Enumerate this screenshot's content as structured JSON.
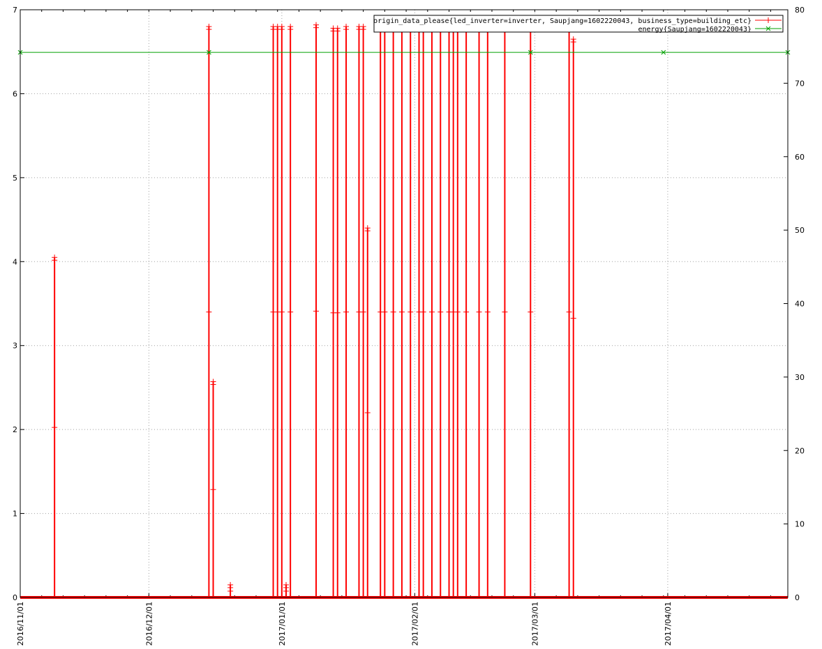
{
  "chart_data": {
    "type": "line",
    "title": "",
    "xlabel": "",
    "ylabel": "",
    "y2label": "",
    "grid": true,
    "legend_position": "top-right",
    "xlim": [
      "2016/11/01",
      "2017/04/29"
    ],
    "ylim": [
      0,
      7
    ],
    "y2lim": [
      0,
      80
    ],
    "x_ticks": [
      "2016/11/01",
      "2016/12/01",
      "2017/01/01",
      "2017/02/01",
      "2017/03/01",
      "2017/04/01"
    ],
    "y_ticks": [
      "0",
      "1",
      "2",
      "3",
      "4",
      "5",
      "6",
      "7"
    ],
    "y2_ticks": [
      "0",
      "10",
      "20",
      "30",
      "40",
      "50",
      "60",
      "70",
      "80"
    ],
    "series": [
      {
        "name": "origin_data_please{led_inverter=inverter, Saupjang=1602220043, business_type=building_etc}",
        "axis": "left",
        "color": "#ff0000",
        "marker": "plus",
        "baseline": 0,
        "spikes": [
          {
            "x": "2016/11/09",
            "y": 4.05
          },
          {
            "x": "2016/12/15",
            "y": 6.8
          },
          {
            "x": "2016/12/16",
            "y": 2.57
          },
          {
            "x": "2016/12/20",
            "y": 0.15
          },
          {
            "x": "2016/12/30",
            "y": 6.8
          },
          {
            "x": "2016/12/31",
            "y": 6.8
          },
          {
            "x": "2017/01/01",
            "y": 6.8
          },
          {
            "x": "2017/01/02",
            "y": 0.15
          },
          {
            "x": "2017/01/03",
            "y": 6.8
          },
          {
            "x": "2017/01/09",
            "y": 6.82
          },
          {
            "x": "2017/01/13",
            "y": 6.78
          },
          {
            "x": "2017/01/14",
            "y": 6.78
          },
          {
            "x": "2017/01/16",
            "y": 6.8
          },
          {
            "x": "2017/01/19",
            "y": 6.8
          },
          {
            "x": "2017/01/20",
            "y": 6.8
          },
          {
            "x": "2017/01/21",
            "y": 4.4
          },
          {
            "x": "2017/01/24",
            "y": 6.8
          },
          {
            "x": "2017/01/25",
            "y": 6.8
          },
          {
            "x": "2017/01/27",
            "y": 6.8
          },
          {
            "x": "2017/01/29",
            "y": 6.8
          },
          {
            "x": "2017/01/31",
            "y": 6.8
          },
          {
            "x": "2017/02/02",
            "y": 6.8
          },
          {
            "x": "2017/02/03",
            "y": 6.8
          },
          {
            "x": "2017/02/05",
            "y": 6.8
          },
          {
            "x": "2017/02/07",
            "y": 6.8
          },
          {
            "x": "2017/02/09",
            "y": 6.8
          },
          {
            "x": "2017/02/10",
            "y": 6.8
          },
          {
            "x": "2017/02/11",
            "y": 6.8
          },
          {
            "x": "2017/02/13",
            "y": 6.8
          },
          {
            "x": "2017/02/16",
            "y": 6.8
          },
          {
            "x": "2017/02/18",
            "y": 6.8
          },
          {
            "x": "2017/02/22",
            "y": 6.8
          },
          {
            "x": "2017/02/28",
            "y": 6.8
          },
          {
            "x": "2017/03/09",
            "y": 6.8
          },
          {
            "x": "2017/03/10",
            "y": 6.65
          }
        ]
      },
      {
        "name": "energy{Saupjang=1602220043}",
        "axis": "right",
        "color": "#00a000",
        "marker": "cross",
        "points": [
          {
            "x": "2016/11/01",
            "y": 74.2
          },
          {
            "x": "2016/12/15",
            "y": 74.2
          },
          {
            "x": "2017/02/28",
            "y": 74.2
          },
          {
            "x": "2017/03/31",
            "y": 74.2
          },
          {
            "x": "2017/04/29",
            "y": 74.2
          }
        ]
      }
    ]
  }
}
